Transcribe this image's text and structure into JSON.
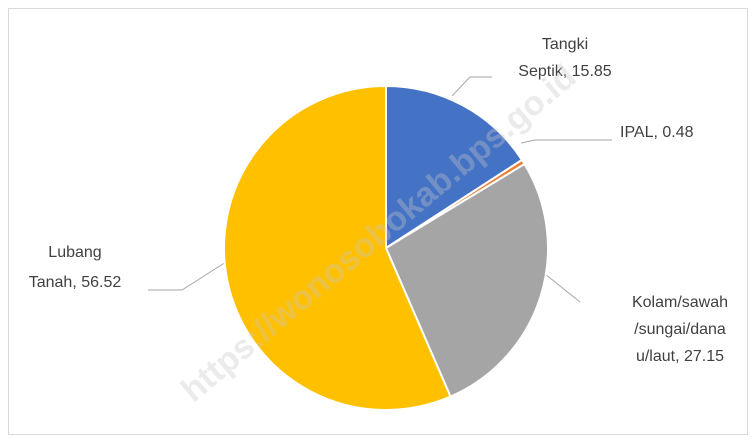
{
  "chart_data": {
    "type": "pie",
    "values": [
      15.85,
      0.48,
      27.15,
      56.52
    ],
    "value_labels": [
      [
        "Tangki",
        "Septik, 15.85"
      ],
      [
        "IPAL, 0.48"
      ],
      [
        "Kolam/sawah",
        "/sungai/dana",
        "u/laut, 27.15"
      ],
      [
        "Lubang",
        "Tanah, 56.52"
      ]
    ],
    "colors": [
      "#4472c4",
      "#ed7d31",
      "#a5a5a5",
      "#ffc000"
    ],
    "watermark": "https://wonosobokab.bps.go.id"
  }
}
